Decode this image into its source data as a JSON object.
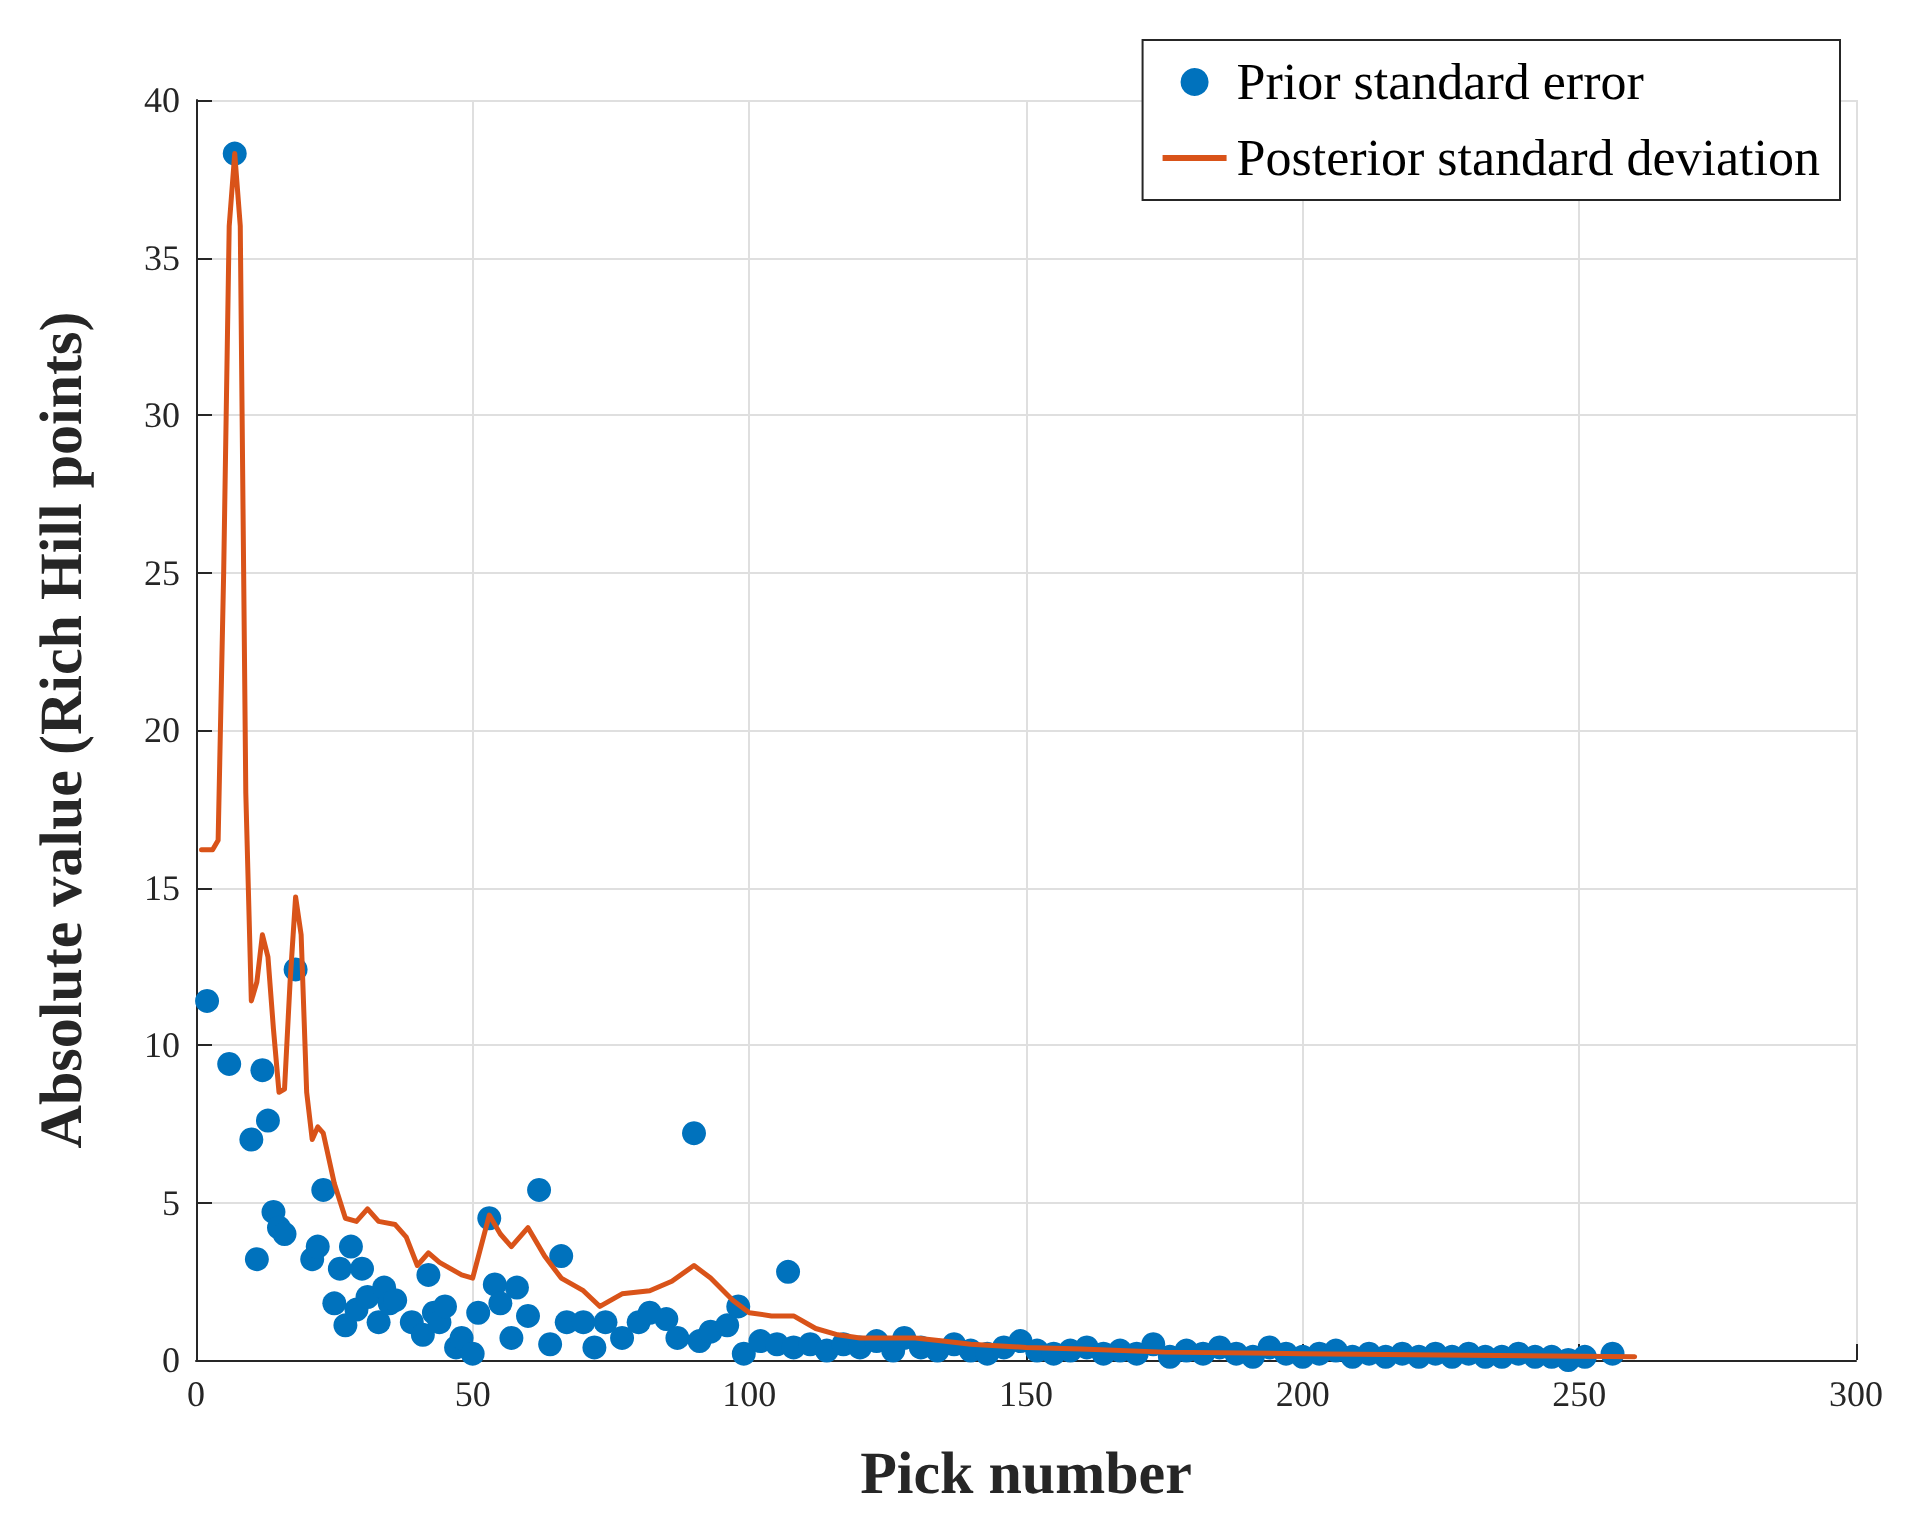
{
  "chart_data": {
    "type": "scatter",
    "xlabel": "Pick number",
    "ylabel": "Absolute value (Rich Hill points)",
    "xlim": [
      0,
      300
    ],
    "xticks": [
      0,
      50,
      100,
      150,
      200,
      250,
      300
    ],
    "ylim": [
      0,
      40
    ],
    "yticks": [
      0,
      5,
      10,
      15,
      20,
      25,
      30,
      35,
      40
    ],
    "grid": true,
    "legend": "top right",
    "series": [
      {
        "name": "Prior standard error",
        "marker": "circle",
        "color": "#0072bd",
        "x": [
          2,
          6,
          7,
          10,
          11,
          12,
          13,
          14,
          15,
          16,
          18,
          21,
          22,
          23,
          25,
          26,
          27,
          28,
          29,
          30,
          31,
          33,
          34,
          35,
          36,
          39,
          41,
          42,
          43,
          44,
          45,
          47,
          48,
          50,
          51,
          53,
          54,
          55,
          57,
          58,
          60,
          62,
          64,
          66,
          67,
          70,
          72,
          74,
          77,
          80,
          82,
          85,
          87,
          90,
          91,
          93,
          96,
          98,
          99,
          102,
          105,
          107,
          108,
          111,
          114,
          117,
          120,
          123,
          126,
          128,
          131,
          134,
          137,
          140,
          143,
          146,
          149,
          152,
          155,
          158,
          161,
          164,
          167,
          170,
          173,
          176,
          179,
          182,
          185,
          188,
          191,
          194,
          197,
          200,
          203,
          206,
          209,
          212,
          215,
          218,
          221,
          224,
          227,
          230,
          233,
          236,
          239,
          242,
          245,
          248,
          251,
          256
        ],
        "values": [
          11.4,
          9.4,
          38.3,
          7.0,
          3.2,
          9.2,
          7.6,
          4.7,
          4.2,
          4.0,
          12.4,
          3.2,
          3.6,
          5.4,
          1.8,
          2.9,
          1.1,
          3.6,
          1.6,
          2.9,
          2.0,
          1.2,
          2.3,
          1.8,
          1.9,
          1.2,
          0.8,
          2.7,
          1.5,
          1.2,
          1.7,
          0.4,
          0.7,
          0.2,
          1.5,
          4.5,
          2.4,
          1.8,
          0.7,
          2.3,
          1.4,
          5.4,
          0.5,
          3.3,
          1.2,
          1.2,
          0.4,
          1.2,
          0.7,
          1.2,
          1.5,
          1.3,
          0.7,
          7.2,
          0.6,
          0.9,
          1.1,
          1.7,
          0.2,
          0.6,
          0.5,
          2.8,
          0.4,
          0.5,
          0.3,
          0.5,
          0.4,
          0.6,
          0.3,
          0.7,
          0.4,
          0.3,
          0.5,
          0.3,
          0.2,
          0.4,
          0.6,
          0.3,
          0.2,
          0.3,
          0.4,
          0.2,
          0.3,
          0.2,
          0.5,
          0.1,
          0.3,
          0.2,
          0.4,
          0.2,
          0.1,
          0.4,
          0.2,
          0.1,
          0.2,
          0.3,
          0.1,
          0.2,
          0.1,
          0.2,
          0.1,
          0.2,
          0.1,
          0.2,
          0.1,
          0.1,
          0.2,
          0.1,
          0.1,
          0.0,
          0.1,
          0.2
        ]
      },
      {
        "name": "Posterior standard deviation",
        "type": "line",
        "marker": "none",
        "line_style": "solid",
        "color": "#d95319",
        "x": [
          1,
          3,
          4,
          5,
          6,
          7,
          8,
          9,
          10,
          11,
          12,
          13,
          14,
          15,
          16,
          17,
          18,
          19,
          20,
          21,
          22,
          23,
          25,
          27,
          29,
          31,
          33,
          36,
          38,
          40,
          42,
          44,
          46,
          48,
          50,
          53,
          55,
          57,
          60,
          63,
          66,
          70,
          73,
          77,
          82,
          86,
          90,
          93,
          97,
          100,
          104,
          108,
          112,
          116,
          120,
          125,
          130,
          135,
          140,
          150,
          160,
          175,
          200,
          230,
          260
        ],
        "values": [
          16.2,
          16.2,
          16.5,
          25,
          36,
          38.3,
          36,
          18,
          11.4,
          12,
          13.5,
          12.8,
          10.5,
          8.5,
          8.6,
          12,
          14.7,
          13.5,
          8.5,
          7,
          7.4,
          7.2,
          5.6,
          4.5,
          4.4,
          4.8,
          4.4,
          4.3,
          3.9,
          3.0,
          3.4,
          3.1,
          2.9,
          2.7,
          2.6,
          4.6,
          4.0,
          3.6,
          4.2,
          3.3,
          2.6,
          2.2,
          1.7,
          2.1,
          2.2,
          2.5,
          3.0,
          2.6,
          1.9,
          1.5,
          1.4,
          1.4,
          1.0,
          0.8,
          0.7,
          0.7,
          0.7,
          0.6,
          0.5,
          0.4,
          0.35,
          0.25,
          0.2,
          0.15,
          0.1
        ]
      }
    ]
  }
}
